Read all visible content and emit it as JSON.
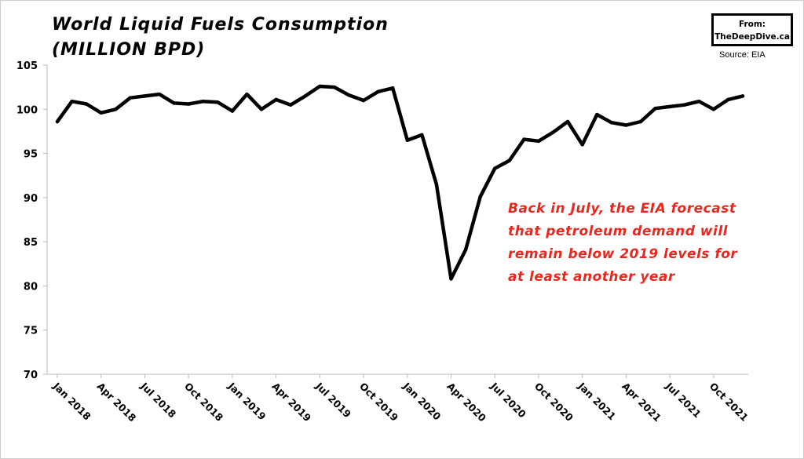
{
  "chart_data": {
    "type": "line",
    "title_lines": [
      "World Liquid Fuels Consumption",
      "(MILLION BPD)"
    ],
    "badge_lines": [
      "From:",
      "TheDeepDive.ca"
    ],
    "source": "Source: EIA",
    "yticks": [
      "105",
      "100",
      "95",
      "90",
      "85",
      "80",
      "75",
      "70"
    ],
    "ylim": [
      70,
      105
    ],
    "xtick_labels": [
      "Jan 2018",
      "Apr 2018",
      "Jul 2018",
      "Oct 2018",
      "Jan 2019",
      "Apr 2019",
      "Jul 2019",
      "Oct 2019",
      "Jan 2020",
      "Apr 2020",
      "Jul 2020",
      "Oct 2020",
      "Jan 2021",
      "Apr 2021",
      "Jul 2021",
      "Oct 2021"
    ],
    "x": [
      "Jan 2018",
      "Feb 2018",
      "Mar 2018",
      "Apr 2018",
      "May 2018",
      "Jun 2018",
      "Jul 2018",
      "Aug 2018",
      "Sep 2018",
      "Oct 2018",
      "Nov 2018",
      "Dec 2018",
      "Jan 2019",
      "Feb 2019",
      "Mar 2019",
      "Apr 2019",
      "May 2019",
      "Jun 2019",
      "Jul 2019",
      "Aug 2019",
      "Sep 2019",
      "Oct 2019",
      "Nov 2019",
      "Dec 2019",
      "Jan 2020",
      "Feb 2020",
      "Mar 2020",
      "Apr 2020",
      "May 2020",
      "Jun 2020",
      "Jul 2020",
      "Aug 2020",
      "Sep 2020",
      "Oct 2020",
      "Nov 2020",
      "Dec 2020",
      "Jan 2021",
      "Feb 2021",
      "Mar 2021",
      "Apr 2021",
      "May 2021",
      "Jun 2021",
      "Jul 2021",
      "Aug 2021",
      "Sep 2021",
      "Oct 2021",
      "Nov 2021",
      "Dec 2021"
    ],
    "series": [
      {
        "values": [
          98.6,
          100.9,
          100.6,
          99.6,
          100.0,
          101.3,
          101.5,
          101.7,
          100.7,
          100.6,
          100.9,
          100.8,
          99.8,
          101.7,
          100.0,
          101.1,
          100.5,
          101.5,
          102.6,
          102.5,
          101.6,
          101.0,
          102.0,
          102.4,
          96.5,
          97.1,
          91.5,
          80.8,
          84.1,
          90.1,
          93.3,
          94.2,
          96.6,
          96.4,
          97.4,
          98.6,
          96.0,
          99.4,
          98.5,
          98.2,
          98.6,
          100.1,
          100.3,
          100.5,
          100.9,
          100.0,
          101.1,
          101.5
        ],
        "color": "#000000"
      }
    ],
    "annotation_lines": [
      "Back in July, the EIA forecast",
      "that petroleum demand will",
      "remain below 2019 levels for",
      "at least another year"
    ],
    "annotation_color": "#e8281e",
    "grid": false,
    "legend": "none"
  }
}
